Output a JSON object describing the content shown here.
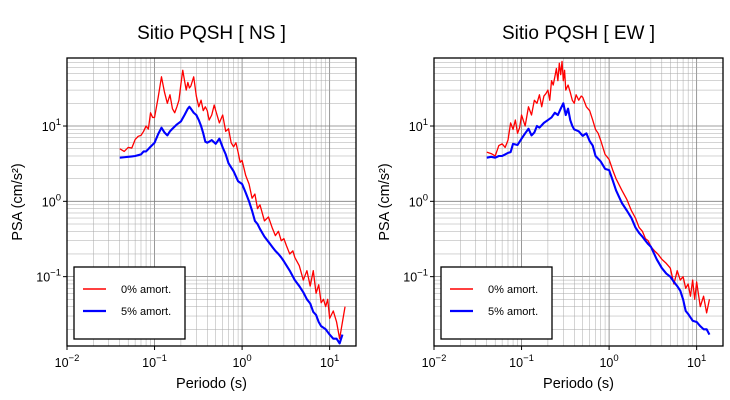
{
  "chart_data": [
    {
      "type": "line",
      "title": "Sitio PQSH [ NS ]",
      "xlabel": "Periodo (s)",
      "ylabel": "PSA (cm/s²)",
      "xscale": "log",
      "yscale": "log",
      "xlim": [
        0.01,
        20
      ],
      "ylim": [
        0.012,
        80
      ],
      "grid": true,
      "legend_position": "bottom-left",
      "x_ticks": [
        {
          "base": "10",
          "exp": "−2",
          "value": 0.01
        },
        {
          "base": "10",
          "exp": "−1",
          "value": 0.1
        },
        {
          "base": "10",
          "exp": "0",
          "value": 1
        },
        {
          "base": "10",
          "exp": "1",
          "value": 10
        }
      ],
      "y_ticks": [
        {
          "base": "10",
          "exp": "−1",
          "value": 0.1
        },
        {
          "base": "10",
          "exp": "0",
          "value": 1
        },
        {
          "base": "10",
          "exp": "1",
          "value": 10
        }
      ],
      "series": [
        {
          "name": "0% amort.",
          "color": "#ff0000",
          "x": [
            0.04,
            0.045,
            0.05,
            0.055,
            0.06,
            0.065,
            0.07,
            0.075,
            0.08,
            0.085,
            0.09,
            0.095,
            0.1,
            0.11,
            0.12,
            0.13,
            0.14,
            0.15,
            0.16,
            0.17,
            0.18,
            0.19,
            0.2,
            0.21,
            0.22,
            0.23,
            0.24,
            0.25,
            0.26,
            0.28,
            0.3,
            0.32,
            0.34,
            0.36,
            0.38,
            0.4,
            0.42,
            0.45,
            0.48,
            0.5,
            0.55,
            0.6,
            0.65,
            0.7,
            0.75,
            0.8,
            0.85,
            0.9,
            0.95,
            1,
            1.1,
            1.2,
            1.3,
            1.4,
            1.5,
            1.6,
            1.8,
            2,
            2.2,
            2.4,
            2.6,
            2.8,
            3,
            3.2,
            3.5,
            3.8,
            4,
            4.5,
            5,
            5.5,
            6,
            6.5,
            7,
            7.5,
            8,
            8.5,
            9,
            9.5,
            10,
            11,
            12,
            13,
            14,
            15
          ],
          "y": [
            5,
            4.6,
            5.2,
            5.1,
            6.6,
            7.3,
            7.5,
            8.5,
            10,
            9.1,
            15,
            13,
            13,
            24,
            45,
            28,
            20,
            26,
            17,
            15,
            18,
            22,
            36,
            55,
            40,
            30,
            38,
            32,
            34,
            45,
            25,
            18,
            22,
            16,
            18,
            16,
            12,
            14,
            19,
            16,
            11,
            14,
            8.5,
            9.2,
            6,
            5.3,
            6,
            4.5,
            3.3,
            3.5,
            2.2,
            1.7,
            1.1,
            1.25,
            0.8,
            0.9,
            0.55,
            0.62,
            0.45,
            0.35,
            0.4,
            0.3,
            0.32,
            0.26,
            0.2,
            0.22,
            0.18,
            0.14,
            0.09,
            0.12,
            0.075,
            0.12,
            0.06,
            0.078,
            0.045,
            0.05,
            0.04,
            0.05,
            0.028,
            0.035,
            0.025,
            0.015,
            0.025,
            0.04
          ]
        },
        {
          "name": "5% amort.",
          "color": "#0000ff",
          "x": [
            0.04,
            0.045,
            0.05,
            0.055,
            0.06,
            0.065,
            0.07,
            0.075,
            0.08,
            0.09,
            0.1,
            0.11,
            0.12,
            0.13,
            0.14,
            0.15,
            0.16,
            0.18,
            0.2,
            0.22,
            0.24,
            0.25,
            0.26,
            0.28,
            0.3,
            0.32,
            0.34,
            0.36,
            0.38,
            0.4,
            0.45,
            0.5,
            0.55,
            0.6,
            0.65,
            0.7,
            0.8,
            0.9,
            1,
            1.1,
            1.2,
            1.3,
            1.4,
            1.5,
            1.6,
            1.8,
            2,
            2.2,
            2.4,
            2.6,
            2.8,
            3,
            3.5,
            4,
            4.5,
            5,
            5.5,
            6,
            6.5,
            7,
            7.5,
            8,
            9,
            10,
            11,
            12,
            13,
            14
          ],
          "y": [
            3.8,
            3.85,
            3.9,
            3.95,
            4.0,
            4.1,
            4.2,
            4.6,
            4.6,
            5.3,
            6.0,
            7.8,
            9.5,
            8.2,
            7.5,
            8.5,
            9.2,
            10.5,
            11.5,
            14,
            17,
            18,
            17,
            15,
            14,
            12,
            10,
            8,
            6.2,
            6.0,
            6.5,
            5.8,
            6.8,
            5.2,
            4.2,
            3.2,
            2.5,
            1.85,
            1.7,
            1.3,
            1.0,
            0.75,
            0.55,
            0.5,
            0.43,
            0.34,
            0.29,
            0.25,
            0.22,
            0.2,
            0.18,
            0.16,
            0.12,
            0.09,
            0.075,
            0.062,
            0.05,
            0.044,
            0.034,
            0.031,
            0.025,
            0.022,
            0.02,
            0.017,
            0.015,
            0.015,
            0.013,
            0.017
          ]
        }
      ]
    },
    {
      "type": "line",
      "title": "Sitio PQSH [ EW ]",
      "xlabel": "Periodo (s)",
      "ylabel": "PSA (cm/s²)",
      "xscale": "log",
      "yscale": "log",
      "xlim": [
        0.01,
        20
      ],
      "ylim": [
        0.012,
        80
      ],
      "grid": true,
      "legend_position": "bottom-left",
      "x_ticks": [
        {
          "base": "10",
          "exp": "−2",
          "value": 0.01
        },
        {
          "base": "10",
          "exp": "−1",
          "value": 0.1
        },
        {
          "base": "10",
          "exp": "0",
          "value": 1
        },
        {
          "base": "10",
          "exp": "1",
          "value": 10
        }
      ],
      "y_ticks": [
        {
          "base": "10",
          "exp": "−1",
          "value": 0.1
        },
        {
          "base": "10",
          "exp": "0",
          "value": 1
        },
        {
          "base": "10",
          "exp": "1",
          "value": 10
        }
      ],
      "series": [
        {
          "name": "0% amort.",
          "color": "#ff0000",
          "x": [
            0.04,
            0.045,
            0.05,
            0.055,
            0.06,
            0.065,
            0.07,
            0.075,
            0.08,
            0.085,
            0.09,
            0.095,
            0.1,
            0.11,
            0.12,
            0.13,
            0.14,
            0.15,
            0.16,
            0.17,
            0.18,
            0.19,
            0.2,
            0.21,
            0.22,
            0.23,
            0.24,
            0.25,
            0.26,
            0.27,
            0.28,
            0.29,
            0.3,
            0.31,
            0.32,
            0.34,
            0.36,
            0.38,
            0.4,
            0.42,
            0.45,
            0.48,
            0.5,
            0.55,
            0.6,
            0.65,
            0.7,
            0.75,
            0.8,
            0.9,
            1,
            1.1,
            1.2,
            1.4,
            1.6,
            1.8,
            2,
            2.2,
            2.4,
            2.6,
            2.8,
            3,
            3.3,
            3.6,
            4,
            4.5,
            5,
            5.5,
            6,
            6.5,
            7,
            7.5,
            8,
            8.5,
            9,
            9.5,
            10,
            11,
            12,
            13,
            14
          ],
          "y": [
            4.5,
            4.3,
            4.0,
            5.5,
            5.8,
            5.2,
            6.5,
            11,
            9,
            12,
            8,
            9.5,
            14,
            10,
            18,
            14,
            22,
            20,
            26,
            18,
            25,
            27,
            30,
            22,
            40,
            35,
            45,
            58,
            40,
            68,
            48,
            72,
            40,
            55,
            30,
            35,
            28,
            22,
            20,
            26,
            22,
            25,
            24,
            18,
            16,
            12,
            9,
            8,
            6.5,
            4.2,
            3.6,
            2.6,
            2.0,
            1.4,
            1.05,
            0.75,
            0.6,
            0.45,
            0.4,
            0.32,
            0.3,
            0.25,
            0.22,
            0.2,
            0.17,
            0.15,
            0.13,
            0.08,
            0.12,
            0.09,
            0.1,
            0.07,
            0.08,
            0.055,
            0.09,
            0.05,
            0.085,
            0.04,
            0.055,
            0.033,
            0.05
          ]
        },
        {
          "name": "5% amort.",
          "color": "#0000ff",
          "x": [
            0.04,
            0.045,
            0.05,
            0.055,
            0.06,
            0.065,
            0.07,
            0.075,
            0.08,
            0.09,
            0.1,
            0.11,
            0.12,
            0.13,
            0.14,
            0.15,
            0.16,
            0.18,
            0.2,
            0.22,
            0.24,
            0.26,
            0.28,
            0.3,
            0.32,
            0.34,
            0.36,
            0.38,
            0.4,
            0.45,
            0.5,
            0.55,
            0.6,
            0.65,
            0.7,
            0.8,
            0.9,
            1,
            1.1,
            1.2,
            1.4,
            1.6,
            1.8,
            2,
            2.2,
            2.4,
            2.6,
            2.8,
            3,
            3.5,
            4,
            4.5,
            5,
            5.5,
            6,
            6.5,
            7,
            7.5,
            8,
            9,
            10,
            11,
            12,
            13,
            14
          ],
          "y": [
            3.8,
            3.9,
            3.8,
            4.0,
            4.0,
            4.2,
            4.4,
            4.5,
            5.8,
            5.6,
            6.8,
            8.0,
            9.2,
            7.5,
            8.2,
            10,
            9.5,
            11,
            12,
            13,
            15,
            14,
            17,
            20,
            14,
            17,
            12,
            10,
            9,
            8.5,
            7.4,
            8.0,
            6.3,
            5.5,
            4.0,
            3.4,
            2.7,
            2.6,
            1.9,
            1.4,
            0.95,
            0.75,
            0.6,
            0.45,
            0.38,
            0.34,
            0.3,
            0.27,
            0.25,
            0.17,
            0.13,
            0.11,
            0.1,
            0.085,
            0.075,
            0.065,
            0.05,
            0.035,
            0.032,
            0.026,
            0.025,
            0.022,
            0.02,
            0.02,
            0.017
          ]
        }
      ]
    }
  ]
}
